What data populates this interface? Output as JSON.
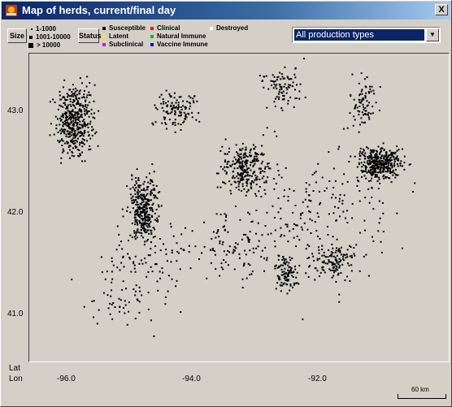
{
  "window": {
    "title": "Map of herds, current/final day",
    "close_label": "X"
  },
  "toolbar": {
    "size_button": "Size",
    "status_button": "Status",
    "size_legend": [
      "1-1000",
      "1001-10000",
      "> 10000"
    ],
    "status_legend_col1": [
      {
        "label": "Susceptible",
        "color": "#000000"
      },
      {
        "label": "Latent",
        "color": "#f0f000"
      },
      {
        "label": "Subclinical",
        "color": "#e000e0"
      }
    ],
    "status_legend_col2": [
      {
        "label": "Clinical",
        "color": "#ff0000"
      },
      {
        "label": "Natural Immune",
        "color": "#00c000"
      },
      {
        "label": "Vaccine Immune",
        "color": "#0000ff"
      }
    ],
    "status_legend_col3": [
      {
        "label": "Destroyed",
        "color": "#ffffff"
      }
    ],
    "production_select": "All production types",
    "select_arrow": "▼"
  },
  "map": {
    "lat_ticks": [
      "43.0",
      "42.0",
      "41.0"
    ],
    "lon_ticks": [
      "-96.0",
      "-94.0",
      "-92.0"
    ],
    "lat_label": "Lat",
    "lon_label": "Lon",
    "scale_label": "60 km"
  }
}
